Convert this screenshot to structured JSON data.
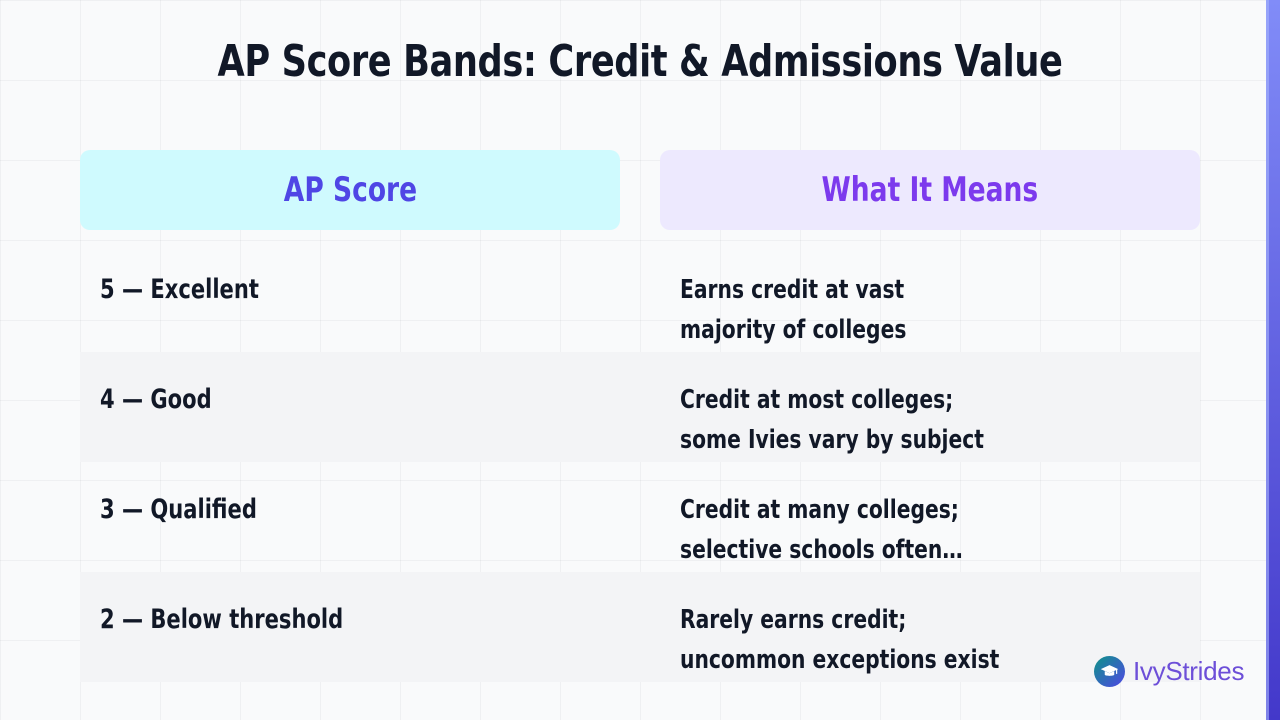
{
  "slide": {
    "title": "AP Score Bands: Credit & Admissions Value"
  },
  "table": {
    "headers": {
      "score": "AP Score",
      "meaning": "What It Means"
    },
    "rows": [
      {
        "score": "5 — Excellent",
        "meaning": [
          "Earns credit at vast",
          "majority of colleges"
        ]
      },
      {
        "score": "4 — Good",
        "meaning": [
          "Credit at most colleges;",
          "some Ivies vary by subject"
        ]
      },
      {
        "score": "3 — Qualified",
        "meaning": [
          "Credit at many colleges;",
          "selective schools often…"
        ]
      },
      {
        "score": "2 — Below threshold",
        "meaning": [
          "Rarely earns credit;",
          "uncommon exceptions exist"
        ]
      }
    ]
  },
  "brand": {
    "name": "IvyStrides",
    "icon": "graduation-cap-icon"
  },
  "colors": {
    "score_header_bg": "#cffafe",
    "score_header_text": "#4f46e5",
    "meaning_header_bg": "#ede9fe",
    "meaning_header_text": "#7c3aed",
    "accent_bar": "#4f46e5"
  }
}
